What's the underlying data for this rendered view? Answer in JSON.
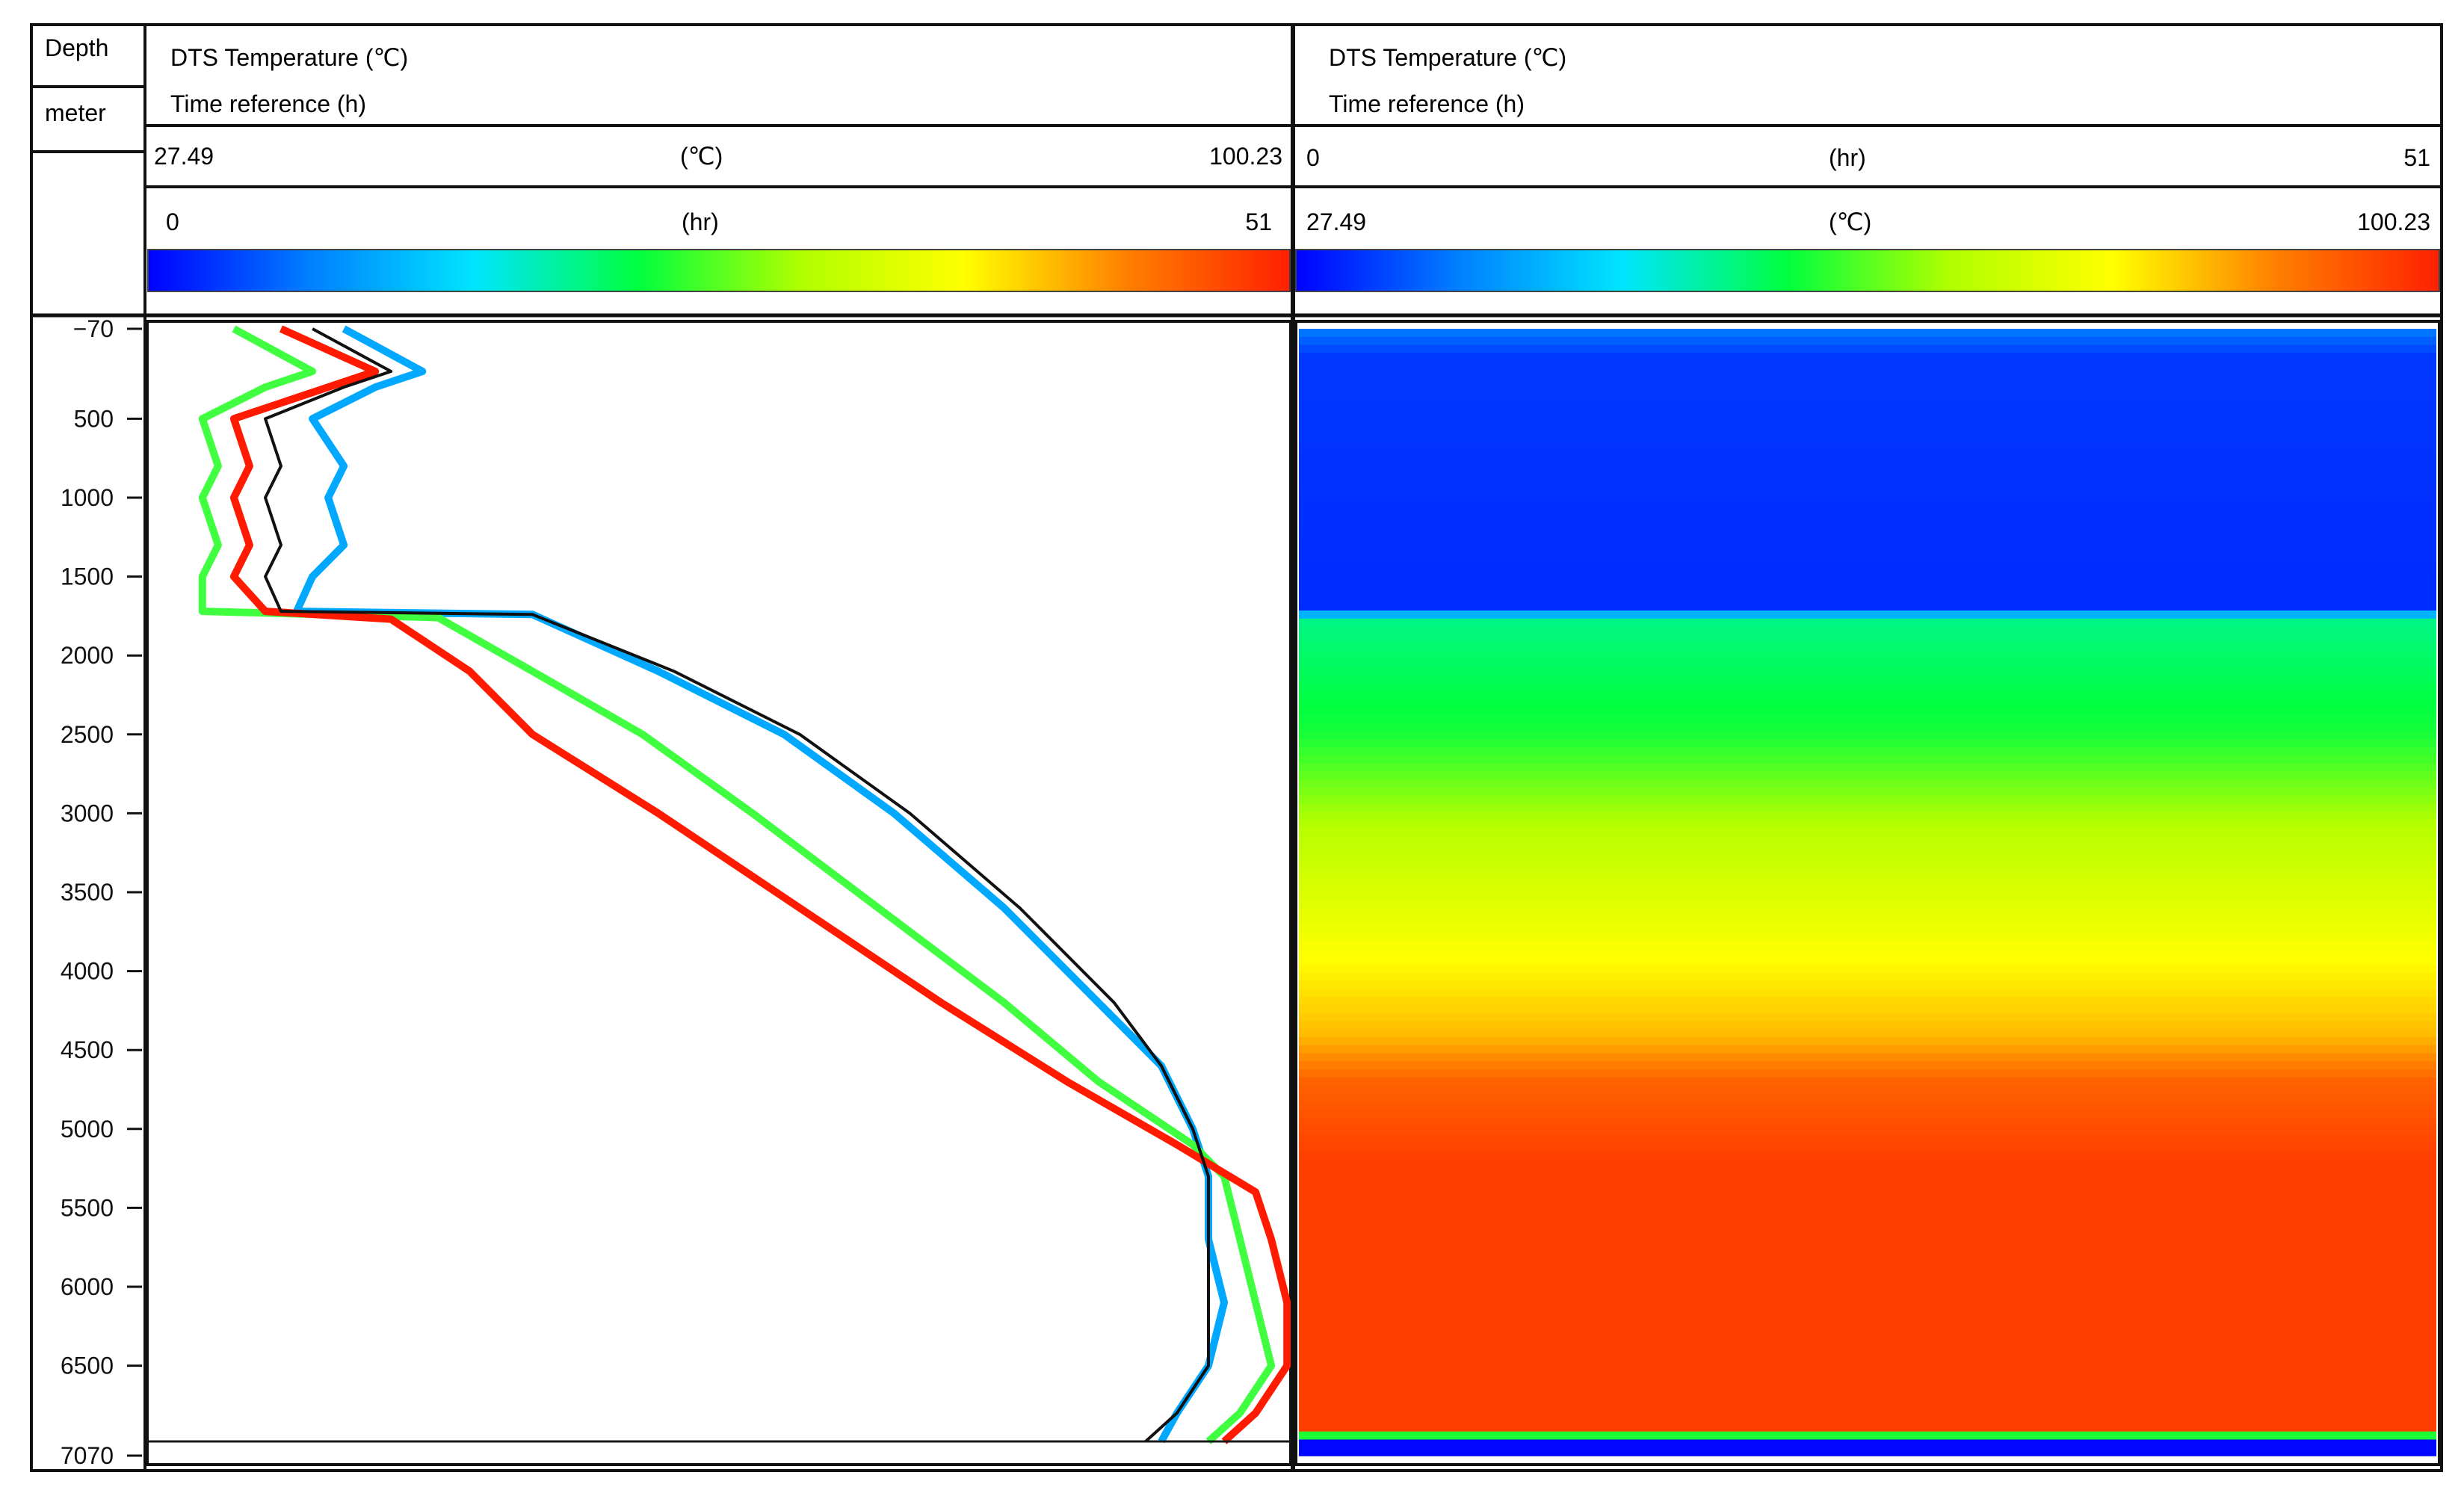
{
  "depth_column": {
    "title": "Depth",
    "unit": "meter"
  },
  "panels": [
    {
      "title": "DTS Temperature (℃)",
      "subtitle": "Time reference (h)",
      "scale_row1": {
        "min": "27.49",
        "unit": "(℃)",
        "max": "100.23"
      },
      "scale_row2": {
        "min": "0",
        "unit": "(hr)",
        "max": "51"
      }
    },
    {
      "title": "DTS Temperature (℃)",
      "subtitle": "Time reference (h)",
      "scale_row1": {
        "min": "0",
        "unit": "(hr)",
        "max": "51"
      },
      "scale_row2": {
        "min": "27.49",
        "unit": "(℃)",
        "max": "100.23"
      }
    }
  ],
  "depth_ticks": [
    "−70",
    "500",
    "1000",
    "1500",
    "2000",
    "2500",
    "3000",
    "3500",
    "4000",
    "4500",
    "5000",
    "5500",
    "6000",
    "6500",
    "7070"
  ],
  "colormap": [
    "#0000ff",
    "#0080ff",
    "#00e5ff",
    "#00ff40",
    "#b0ff00",
    "#ffff00",
    "#ff8000",
    "#ff2000"
  ],
  "chart_data": [
    {
      "type": "line",
      "xlim": [
        27.49,
        100.23
      ],
      "ylim": [
        -70,
        7070
      ],
      "y_axis": "depth (m), increasing downward",
      "color_by": "time (hr), 0 to 51",
      "series": [
        {
          "time_hr": 0,
          "color": "#00a8ff",
          "points": [
            [
              40,
              -70
            ],
            [
              45,
              200
            ],
            [
              42,
              300
            ],
            [
              38,
              500
            ],
            [
              40,
              800
            ],
            [
              39,
              1000
            ],
            [
              40,
              1300
            ],
            [
              38,
              1500
            ],
            [
              37,
              1720
            ],
            [
              52,
              1740
            ],
            [
              60,
              2100
            ],
            [
              68,
              2500
            ],
            [
              75,
              3000
            ],
            [
              82,
              3600
            ],
            [
              88,
              4200
            ],
            [
              92,
              4600
            ],
            [
              94,
              5000
            ],
            [
              95,
              5300
            ],
            [
              95,
              5700
            ],
            [
              96,
              6100
            ],
            [
              95,
              6500
            ],
            [
              93,
              6800
            ],
            [
              92,
              6980
            ]
          ]
        },
        {
          "time_hr": 25,
          "color": "#40ff40",
          "points": [
            [
              33,
              -70
            ],
            [
              38,
              200
            ],
            [
              35,
              300
            ],
            [
              31,
              500
            ],
            [
              32,
              800
            ],
            [
              31,
              1000
            ],
            [
              32,
              1300
            ],
            [
              31,
              1500
            ],
            [
              31,
              1720
            ],
            [
              46,
              1760
            ],
            [
              52,
              2100
            ],
            [
              59,
              2500
            ],
            [
              66,
              3000
            ],
            [
              74,
              3600
            ],
            [
              82,
              4200
            ],
            [
              88,
              4700
            ],
            [
              94,
              5100
            ],
            [
              96,
              5300
            ],
            [
              97,
              5700
            ],
            [
              98,
              6100
            ],
            [
              99,
              6500
            ],
            [
              97,
              6800
            ],
            [
              95,
              6980
            ]
          ]
        },
        {
          "time_hr": 51,
          "color": "#ff1a00",
          "points": [
            [
              36,
              -70
            ],
            [
              42,
              200
            ],
            [
              39,
              300
            ],
            [
              33,
              500
            ],
            [
              34,
              800
            ],
            [
              33,
              1000
            ],
            [
              34,
              1300
            ],
            [
              33,
              1500
            ],
            [
              35,
              1720
            ],
            [
              43,
              1770
            ],
            [
              48,
              2100
            ],
            [
              52,
              2500
            ],
            [
              60,
              3000
            ],
            [
              69,
              3600
            ],
            [
              78,
              4200
            ],
            [
              86,
              4700
            ],
            [
              93,
              5100
            ],
            [
              98,
              5400
            ],
            [
              99,
              5700
            ],
            [
              100,
              6100
            ],
            [
              100,
              6500
            ],
            [
              98,
              6800
            ],
            [
              96,
              6980
            ]
          ]
        },
        {
          "time_hr": 51,
          "color": "#111111",
          "points": [
            [
              38,
              -70
            ],
            [
              43,
              200
            ],
            [
              40,
              300
            ],
            [
              35,
              500
            ],
            [
              36,
              800
            ],
            [
              35,
              1000
            ],
            [
              36,
              1300
            ],
            [
              35,
              1500
            ],
            [
              36,
              1720
            ],
            [
              52,
              1740
            ],
            [
              61,
              2100
            ],
            [
              69,
              2500
            ],
            [
              76,
              3000
            ],
            [
              83,
              3600
            ],
            [
              89,
              4200
            ],
            [
              92,
              4600
            ],
            [
              94,
              5000
            ],
            [
              95,
              5300
            ],
            [
              95,
              5700
            ],
            [
              95,
              6100
            ],
            [
              95,
              6500
            ],
            [
              93,
              6800
            ],
            [
              91,
              6980
            ]
          ]
        }
      ]
    },
    {
      "type": "heatmap",
      "x_range_hr": [
        0,
        51
      ],
      "ylim": [
        -70,
        7070
      ],
      "value_range_celsius": [
        27.49,
        100.23
      ],
      "depth_profile_celsius": [
        [
          -70,
          38
        ],
        [
          100,
          32
        ],
        [
          1700,
          31
        ],
        [
          1780,
          55
        ],
        [
          2500,
          60
        ],
        [
          3100,
          70
        ],
        [
          3800,
          78
        ],
        [
          4400,
          85
        ],
        [
          4700,
          93
        ],
        [
          5200,
          97
        ],
        [
          6900,
          97
        ],
        [
          6980,
          28
        ],
        [
          7070,
          28
        ]
      ]
    }
  ]
}
